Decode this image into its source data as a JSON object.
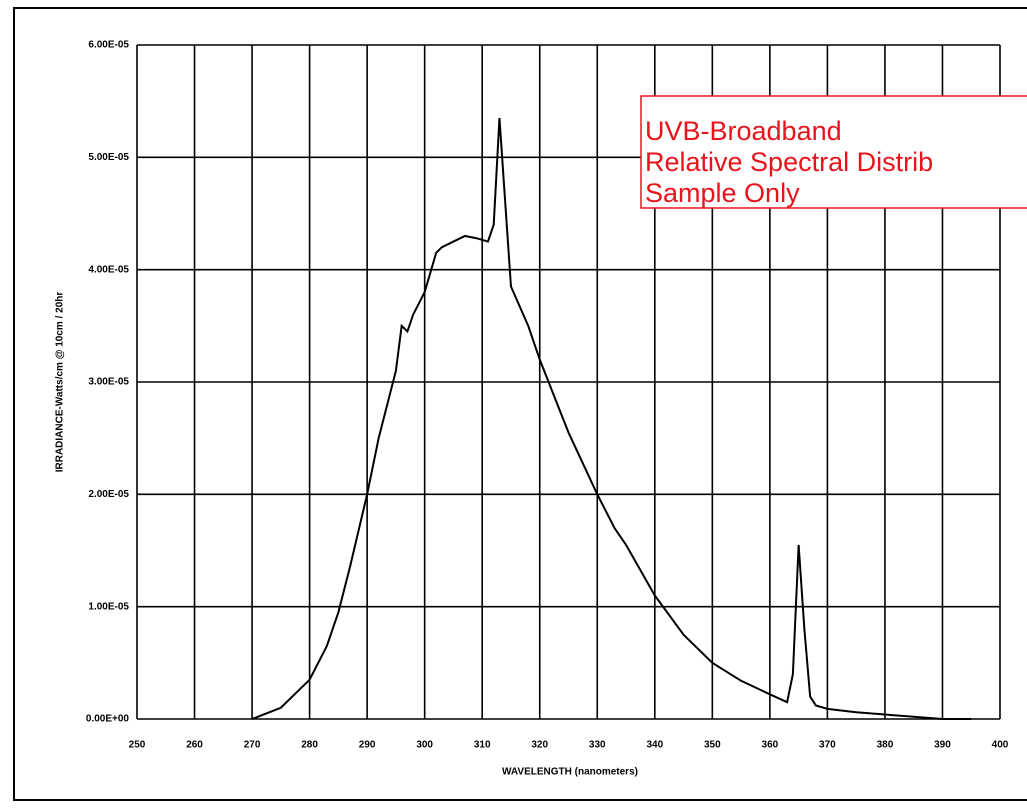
{
  "chart_data": {
    "type": "line",
    "xlabel": "WAVELENGTH (nanometers)",
    "ylabel": "IRRADIANCE-Watts/cm @ 10cm / 20hr",
    "annotation": [
      "UVB-Broadband",
      "Relative Spectral Distrib",
      "Sample Only"
    ],
    "xlim": [
      250,
      400
    ],
    "xticks": [
      250,
      260,
      270,
      280,
      290,
      300,
      310,
      320,
      330,
      340,
      350,
      360,
      370,
      380,
      390,
      400
    ],
    "ylim": [
      0,
      6e-05
    ],
    "yticks": [
      {
        "value": 0,
        "label": "0.00E+00"
      },
      {
        "value": 1e-05,
        "label": "1.00E-05"
      },
      {
        "value": 2e-05,
        "label": "2.00E-05"
      },
      {
        "value": 3e-05,
        "label": "3.00E-05"
      },
      {
        "value": 4e-05,
        "label": "4.00E-05"
      },
      {
        "value": 5e-05,
        "label": "5.00E-05"
      },
      {
        "value": 6e-05,
        "label": "6.00E-05"
      }
    ],
    "grid": true,
    "x": [
      270,
      275,
      280,
      283,
      285,
      287,
      290,
      292,
      294,
      295,
      296,
      297,
      298,
      300,
      302,
      303,
      305,
      307,
      309,
      311,
      312,
      313,
      314,
      315,
      318,
      320,
      325,
      330,
      333,
      335,
      340,
      345,
      350,
      355,
      360,
      363,
      364,
      365,
      366,
      367,
      368,
      370,
      375,
      380,
      385,
      390,
      395
    ],
    "series": [
      {
        "color": "#000000",
        "values": [
          0,
          1e-06,
          3.5e-06,
          6.5e-06,
          9.5e-06,
          1.35e-05,
          2e-05,
          2.5e-05,
          2.9e-05,
          3.1e-05,
          3.5e-05,
          3.45e-05,
          3.6e-05,
          3.8e-05,
          4.15e-05,
          4.2e-05,
          4.25e-05,
          4.3e-05,
          4.28e-05,
          4.25e-05,
          4.4e-05,
          5.35e-05,
          4.6e-05,
          3.85e-05,
          3.5e-05,
          3.2e-05,
          2.55e-05,
          2e-05,
          1.7e-05,
          1.55e-05,
          1.1e-05,
          7.5e-06,
          5e-06,
          3.4e-06,
          2.2e-06,
          1.5e-06,
          4e-06,
          1.55e-05,
          8e-06,
          2e-06,
          1.2e-06,
          9e-07,
          6e-07,
          4e-07,
          2e-07,
          0,
          0
        ]
      }
    ]
  }
}
